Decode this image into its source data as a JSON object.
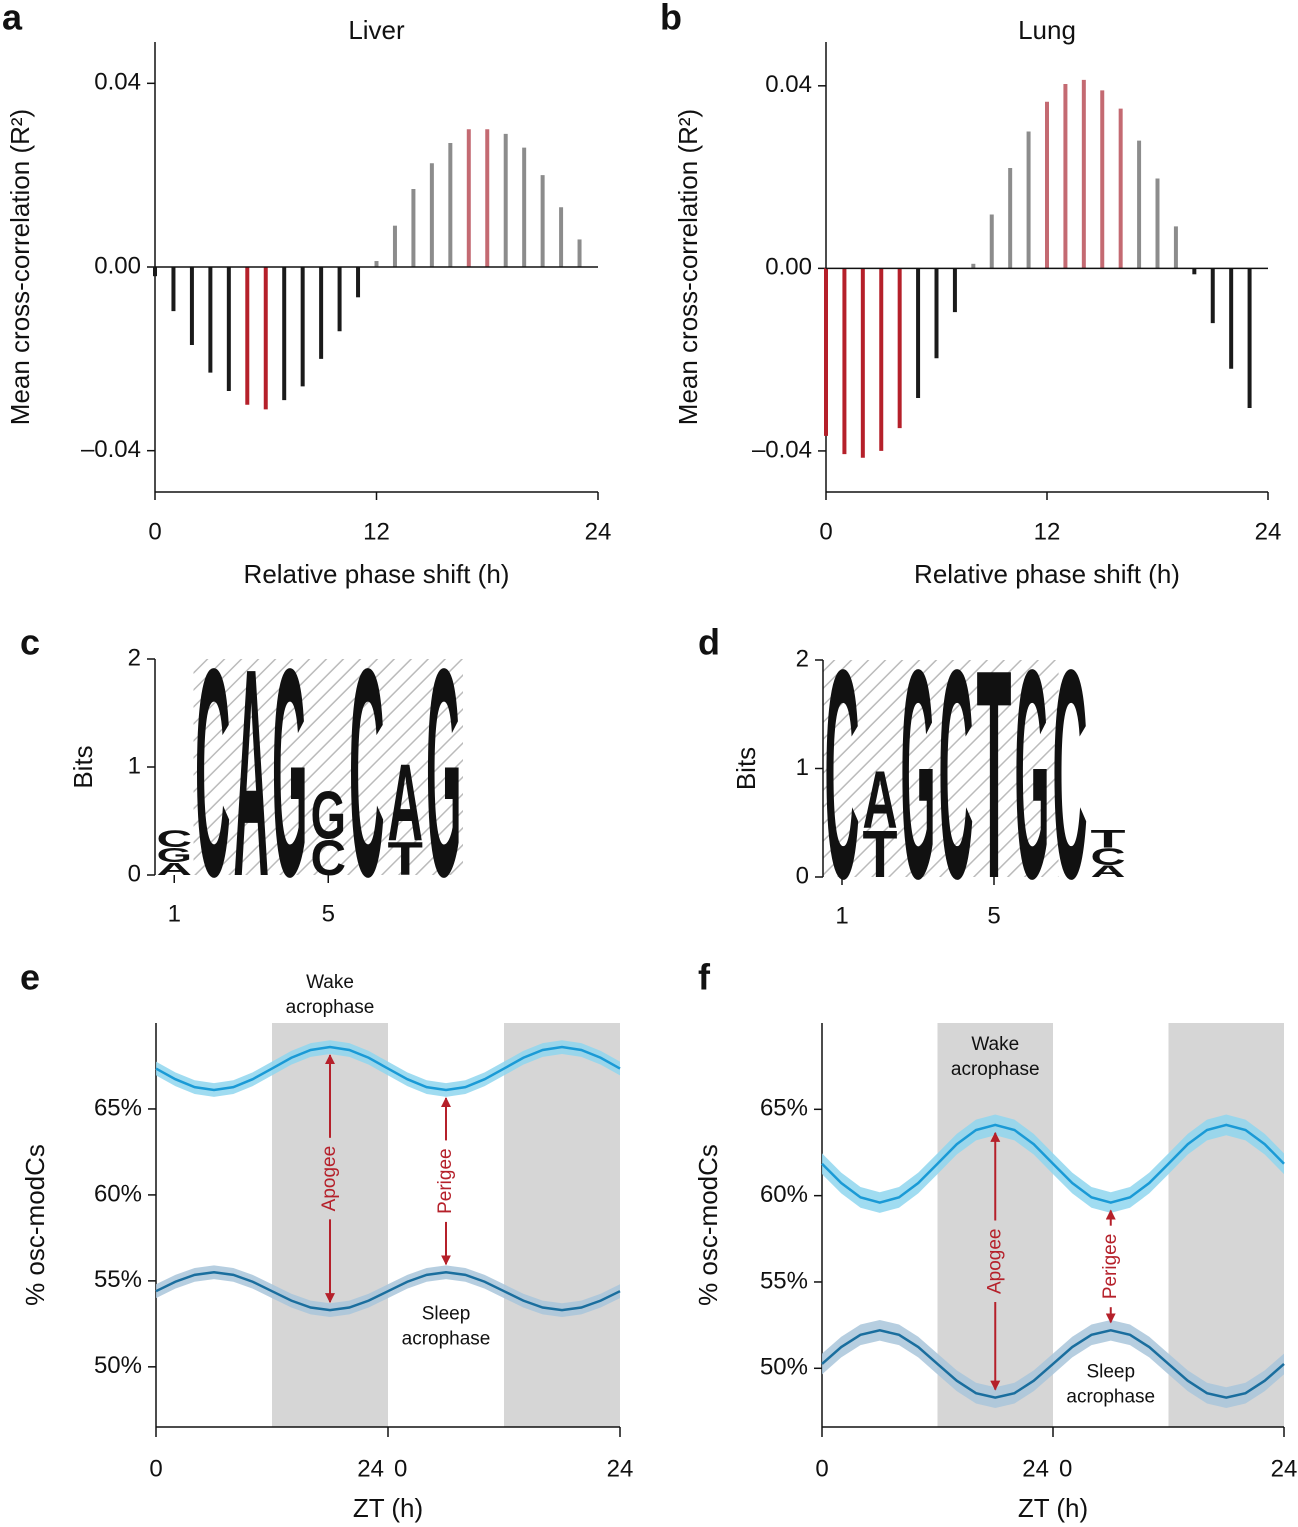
{
  "chart_data": [
    {
      "type": "stem",
      "panel": "a",
      "title": "Liver",
      "xlabel": "Relative phase shift (h)",
      "ylabel": "Mean cross-correlation (R²)",
      "x": [
        0,
        1,
        2,
        3,
        4,
        5,
        6,
        7,
        8,
        9,
        10,
        11,
        12,
        13,
        14,
        15,
        16,
        17,
        18,
        19,
        20,
        21,
        22,
        23
      ],
      "values": [
        -0.002,
        -0.0096,
        -0.017,
        -0.023,
        -0.027,
        -0.03,
        -0.031,
        -0.029,
        -0.026,
        -0.02,
        -0.014,
        -0.0066,
        0.0013,
        0.009,
        0.017,
        0.0226,
        0.027,
        0.03,
        0.03,
        0.029,
        0.026,
        0.02,
        0.013,
        0.006
      ],
      "colors": [
        "#1a1a1a",
        "#1a1a1a",
        "#1a1a1a",
        "#1a1a1a",
        "#1a1a1a",
        "#b5202a",
        "#b5202a",
        "#1a1a1a",
        "#1a1a1a",
        "#1a1a1a",
        "#1a1a1a",
        "#1a1a1a",
        "#8c8c8c",
        "#8c8c8c",
        "#8c8c8c",
        "#8c8c8c",
        "#8c8c8c",
        "#c46a72",
        "#c46a72",
        "#8c8c8c",
        "#8c8c8c",
        "#8c8c8c",
        "#8c8c8c",
        "#8c8c8c"
      ],
      "xlim": [
        0,
        24
      ],
      "xticks": [
        0,
        12,
        24
      ],
      "ylim": [
        -0.049,
        0.049
      ],
      "yticks": [
        {
          "value": -0.04,
          "label": "–0.04"
        },
        {
          "value": 0,
          "label": "0.00"
        },
        0.04
      ]
    },
    {
      "type": "stem",
      "panel": "b",
      "title": "Lung",
      "xlabel": "Relative phase shift (h)",
      "ylabel": "Mean cross-correlation (R²)",
      "x": [
        0,
        1,
        2,
        3,
        4,
        5,
        6,
        7,
        8,
        9,
        10,
        11,
        12,
        13,
        14,
        15,
        16,
        17,
        18,
        19,
        20,
        21,
        22,
        23
      ],
      "values": [
        -0.0367,
        -0.0407,
        -0.0415,
        -0.04,
        -0.035,
        -0.0284,
        -0.0197,
        -0.0096,
        0.001,
        0.0118,
        0.022,
        0.03,
        0.0365,
        0.0404,
        0.0413,
        0.039,
        0.035,
        0.028,
        0.0197,
        0.0092,
        -0.0013,
        -0.012,
        -0.022,
        -0.0306
      ],
      "colors": [
        "#b5202a",
        "#b5202a",
        "#b5202a",
        "#b5202a",
        "#b5202a",
        "#1a1a1a",
        "#1a1a1a",
        "#1a1a1a",
        "#8c8c8c",
        "#8c8c8c",
        "#8c8c8c",
        "#8c8c8c",
        "#c46a72",
        "#c46a72",
        "#c46a72",
        "#c46a72",
        "#c46a72",
        "#8c8c8c",
        "#8c8c8c",
        "#8c8c8c",
        "#1a1a1a",
        "#1a1a1a",
        "#1a1a1a",
        "#1a1a1a"
      ],
      "xlim": [
        0,
        24
      ],
      "xticks": [
        0,
        12,
        24
      ],
      "ylim": [
        -0.049,
        0.0496
      ],
      "yticks": [
        {
          "value": -0.04,
          "label": "–0.04"
        },
        {
          "value": 0,
          "label": "0.00"
        },
        0.04
      ]
    },
    {
      "type": "logo",
      "panel": "c",
      "ylabel": "Bits",
      "ylim": [
        0,
        2
      ],
      "yticks": [
        0,
        1,
        2
      ],
      "xlim": [
        0.5,
        8.5
      ],
      "xticks": [
        1,
        5
      ],
      "hatched": [
        1.5,
        8.5
      ],
      "letter_colors": {
        "A": "#b5202a",
        "C": "#2a3585",
        "G": "#f0a830",
        "T": "#1a7a3c"
      },
      "positions": [
        {
          "letters": [
            "A",
            "G",
            "C"
          ],
          "values": [
            0.12,
            0.14,
            0.16
          ]
        },
        {
          "letters": [
            "C"
          ],
          "values": [
            2.0
          ]
        },
        {
          "letters": [
            "A"
          ],
          "values": [
            2.0
          ]
        },
        {
          "letters": [
            "G"
          ],
          "values": [
            2.0
          ]
        },
        {
          "letters": [
            "C",
            "G"
          ],
          "values": [
            0.34,
            0.46
          ]
        },
        {
          "letters": [
            "C"
          ],
          "values": [
            2.0
          ]
        },
        {
          "letters": [
            "T",
            "A"
          ],
          "values": [
            0.32,
            0.74
          ]
        },
        {
          "letters": [
            "G"
          ],
          "values": [
            2.0
          ]
        }
      ]
    },
    {
      "type": "logo",
      "panel": "d",
      "ylabel": "Bits",
      "ylim": [
        0,
        2
      ],
      "yticks": [
        0,
        1,
        2
      ],
      "xlim": [
        0.5,
        8.5
      ],
      "xticks": [
        1,
        5
      ],
      "hatched": [
        0.5,
        6.7
      ],
      "letter_colors": {
        "A": "#b5202a",
        "C": "#2a3585",
        "G": "#f0a830",
        "T": "#1a7a3c"
      },
      "positions": [
        {
          "letters": [
            "C"
          ],
          "values": [
            2.0
          ]
        },
        {
          "letters": [
            "T",
            "A"
          ],
          "values": [
            0.45,
            0.55
          ]
        },
        {
          "letters": [
            "G"
          ],
          "values": [
            2.0
          ]
        },
        {
          "letters": [
            "C"
          ],
          "values": [
            2.0
          ]
        },
        {
          "letters": [
            "T"
          ],
          "values": [
            2.0
          ]
        },
        {
          "letters": [
            "G"
          ],
          "values": [
            2.0
          ]
        },
        {
          "letters": [
            "C"
          ],
          "values": [
            2.0
          ]
        },
        {
          "letters": [
            "A",
            "C",
            "T"
          ],
          "values": [
            0.11,
            0.16,
            0.17
          ]
        }
      ]
    },
    {
      "type": "line",
      "panel": "e",
      "xlabel": "ZT (h)",
      "ylabel": "% osc-modCs",
      "x": [
        0,
        2,
        4,
        6,
        8,
        10,
        12,
        14,
        16,
        18,
        20,
        22,
        24,
        26,
        28,
        30,
        32,
        34,
        36,
        38,
        40,
        42,
        44,
        46,
        48
      ],
      "xlim": [
        0,
        48
      ],
      "xticks": [
        0,
        24,
        {
          "value": 24,
          "label": "0"
        },
        {
          "value": 48,
          "label": "24"
        }
      ],
      "ylim": [
        46.5,
        70
      ],
      "yticks": [
        {
          "value": 50,
          "label": "50%"
        },
        {
          "value": 55,
          "label": "55%"
        },
        {
          "value": 60,
          "label": "60%"
        },
        {
          "value": 65,
          "label": "65%"
        }
      ],
      "shaded": [
        [
          12,
          24
        ],
        [
          36,
          48
        ]
      ],
      "series": [
        {
          "label": [
            "Wake",
            "acrophase"
          ],
          "label_x": 18,
          "color": "#1a9ad6",
          "band_color": "#8fd6ee",
          "error": 0.4,
          "values": [
            67.35,
            66.73,
            66.27,
            66.1,
            66.27,
            66.73,
            67.35,
            67.98,
            68.43,
            68.6,
            68.43,
            67.98,
            67.35,
            66.73,
            66.27,
            66.1,
            66.27,
            66.73,
            67.35,
            67.98,
            68.43,
            68.6,
            68.43,
            67.98,
            67.35
          ]
        },
        {
          "label": [
            "Sleep",
            "acrophase"
          ],
          "label_x": 30,
          "color": "#1a6e9e",
          "band_color": "#a9c6da",
          "error": 0.4,
          "values": [
            54.4,
            54.95,
            55.35,
            55.5,
            55.35,
            54.95,
            54.4,
            53.85,
            53.45,
            53.3,
            53.45,
            53.85,
            54.4,
            54.95,
            55.35,
            55.5,
            55.35,
            54.95,
            54.4,
            53.85,
            53.45,
            53.3,
            53.45,
            53.85,
            54.4
          ]
        }
      ],
      "arrows": [
        {
          "text": "Apogee",
          "x": 18
        },
        {
          "text": "Perigee",
          "x": 30
        }
      ]
    },
    {
      "type": "line",
      "panel": "f",
      "xlabel": "ZT (h)",
      "ylabel": "% osc-modCs",
      "x": [
        0,
        2,
        4,
        6,
        8,
        10,
        12,
        14,
        16,
        18,
        20,
        22,
        24,
        26,
        28,
        30,
        32,
        34,
        36,
        38,
        40,
        42,
        44,
        46,
        48
      ],
      "xlim": [
        0,
        48
      ],
      "xticks": [
        0,
        24,
        {
          "value": 24,
          "label": "0"
        },
        {
          "value": 48,
          "label": "24"
        }
      ],
      "ylim": [
        46.6,
        70
      ],
      "yticks": [
        {
          "value": 50,
          "label": "50%"
        },
        {
          "value": 55,
          "label": "55%"
        },
        {
          "value": 60,
          "label": "60%"
        },
        {
          "value": 65,
          "label": "65%"
        }
      ],
      "shaded": [
        [
          12,
          24
        ],
        [
          36,
          48
        ]
      ],
      "series": [
        {
          "label": [
            "Wake",
            "acrophase"
          ],
          "label_x": 18,
          "color": "#1a9ad6",
          "band_color": "#8fd6ee",
          "error": 0.6,
          "values": [
            61.85,
            60.73,
            59.9,
            59.6,
            59.9,
            60.73,
            61.85,
            62.98,
            63.8,
            64.1,
            63.8,
            62.98,
            61.85,
            60.73,
            59.9,
            59.6,
            59.9,
            60.73,
            61.85,
            62.98,
            63.8,
            64.1,
            63.8,
            62.98,
            61.85
          ]
        },
        {
          "label": [
            "Sleep",
            "acrophase"
          ],
          "label_x": 30,
          "color": "#1a6e9e",
          "band_color": "#a9c6da",
          "error": 0.6,
          "values": [
            50.25,
            51.23,
            51.94,
            52.2,
            51.94,
            51.23,
            50.25,
            49.28,
            48.56,
            48.3,
            48.56,
            49.28,
            50.25,
            51.23,
            51.94,
            52.2,
            51.94,
            51.23,
            50.25,
            49.28,
            48.56,
            48.3,
            48.56,
            49.28,
            50.25
          ]
        }
      ],
      "arrows": [
        {
          "text": "Apogee",
          "x": 18
        },
        {
          "text": "Perigee",
          "x": 30
        }
      ]
    }
  ]
}
